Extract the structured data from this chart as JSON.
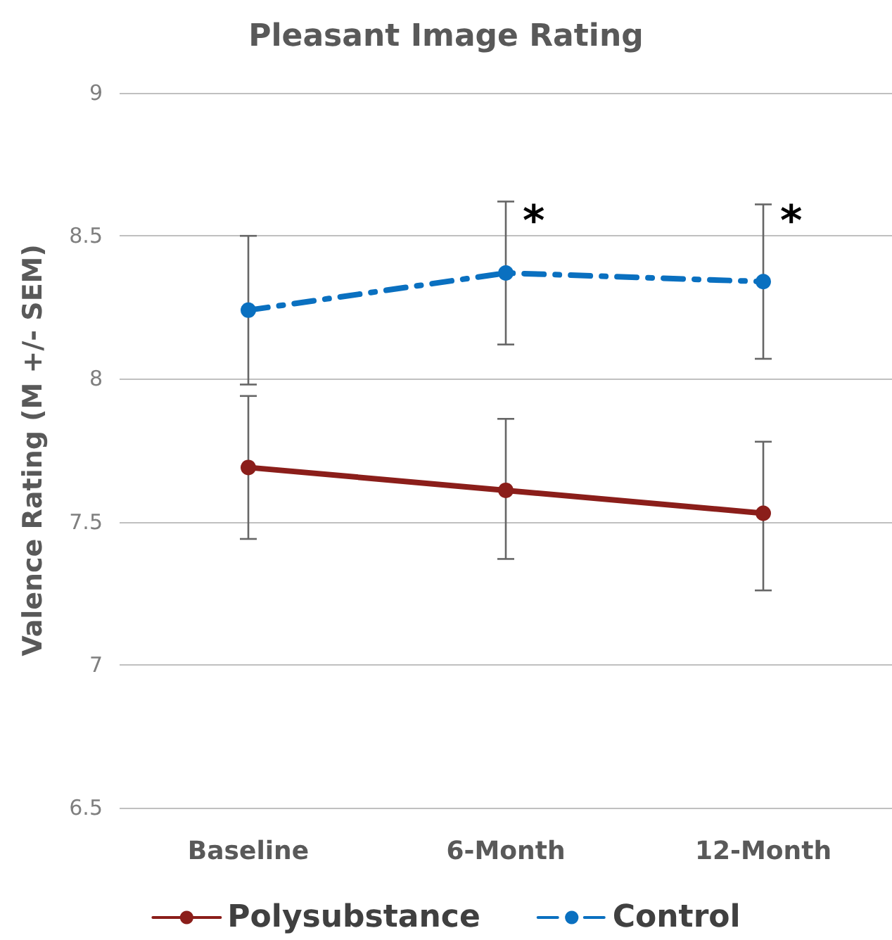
{
  "chart_data": {
    "type": "line",
    "title": "Pleasant Image Rating",
    "ylabel": "Valence Rating (M +/- SEM)",
    "categories": [
      "Baseline",
      "6-Month",
      "12-Month"
    ],
    "series": [
      {
        "name": "Polysubstance",
        "color": "#8b1e1a",
        "line_style": "solid",
        "values": [
          7.69,
          7.61,
          7.53
        ],
        "errors": [
          [
            7.44,
            7.94
          ],
          [
            7.37,
            7.86
          ],
          [
            7.26,
            7.78
          ]
        ]
      },
      {
        "name": "Control",
        "color": "#0a70c0",
        "line_style": "dashdot",
        "values": [
          8.24,
          8.37,
          8.34
        ],
        "errors": [
          [
            7.98,
            8.5
          ],
          [
            8.12,
            8.62
          ],
          [
            8.07,
            8.61
          ]
        ]
      }
    ],
    "ylim": [
      6.5,
      9
    ],
    "yticks": [
      6.5,
      7,
      7.5,
      8,
      8.5,
      9
    ],
    "grid": "y",
    "legend": "bottom",
    "marker": "circle",
    "annotations": [
      {
        "text": "*",
        "x": "6-Month",
        "y": 8.55
      },
      {
        "text": "*",
        "x": "12-Month",
        "y": 8.55
      }
    ]
  }
}
